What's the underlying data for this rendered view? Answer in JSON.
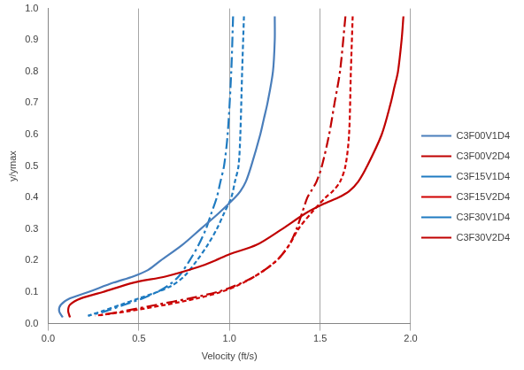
{
  "chart_data": {
    "type": "line",
    "x_label": "Velocity (ft/s)",
    "y_label": "y/ymax",
    "xlim": [
      0,
      2.0
    ],
    "xticks": [
      {
        "value": 0,
        "label": "0.0"
      },
      0.5,
      {
        "value": 1,
        "label": "1.0"
      },
      1.5,
      {
        "value": 2,
        "label": "2.0"
      }
    ],
    "ylim": [
      0,
      1.0
    ],
    "yticks": [
      {
        "value": 0,
        "label": "0.0"
      },
      0.1,
      0.2,
      0.3,
      0.4,
      0.5,
      0.6,
      0.7,
      0.8,
      0.9,
      {
        "value": 1,
        "label": "1.0"
      }
    ],
    "grid": "x",
    "legend": "right",
    "series": [
      {
        "name": "C3F00V1D4",
        "color": "#4a7ebb",
        "line_style": "solid",
        "x": [
          1.25,
          1.25,
          1.24,
          1.21,
          1.19,
          1.17,
          1.12,
          1.09,
          1.06,
          1.03,
          0.94,
          0.84,
          0.74,
          0.62,
          0.55,
          0.47,
          0.36,
          0.22,
          0.12,
          0.07,
          0.06,
          0.08
        ],
        "values": [
          0.975,
          0.9,
          0.8,
          0.7,
          0.65,
          0.6,
          0.5,
          0.45,
          0.42,
          0.4,
          0.35,
          0.3,
          0.25,
          0.2,
          0.17,
          0.15,
          0.13,
          0.1,
          0.08,
          0.06,
          0.04,
          0.02
        ]
      },
      {
        "name": "C3F00V2D4",
        "color": "#c00000",
        "line_style": "solid",
        "x": [
          1.96,
          1.95,
          1.93,
          1.91,
          1.89,
          1.84,
          1.76,
          1.71,
          1.66,
          1.6,
          1.52,
          1.42,
          1.29,
          1.15,
          1.0,
          0.92,
          0.83,
          0.65,
          0.47,
          0.3,
          0.18,
          0.12,
          0.11,
          0.12
        ],
        "values": [
          0.975,
          0.9,
          0.8,
          0.75,
          0.7,
          0.6,
          0.5,
          0.45,
          0.42,
          0.4,
          0.38,
          0.35,
          0.3,
          0.25,
          0.22,
          0.2,
          0.18,
          0.15,
          0.13,
          0.1,
          0.08,
          0.06,
          0.04,
          0.02
        ]
      },
      {
        "name": "C3F15V1D4",
        "color": "#1f7bc1",
        "line_style": "dashed",
        "x": [
          1.08,
          1.07,
          1.06,
          1.05,
          1.03,
          1.01,
          0.97,
          0.93,
          0.88,
          0.82,
          0.75,
          0.68,
          0.6,
          0.5,
          0.4,
          0.3,
          0.22
        ],
        "values": [
          0.975,
          0.8,
          0.6,
          0.5,
          0.45,
          0.4,
          0.35,
          0.3,
          0.25,
          0.2,
          0.15,
          0.12,
          0.1,
          0.08,
          0.06,
          0.04,
          0.025
        ]
      },
      {
        "name": "C3F15V2D4",
        "color": "#d00000",
        "line_style": "dashed",
        "x": [
          1.68,
          1.67,
          1.66,
          1.64,
          1.61,
          1.57,
          1.53,
          1.45,
          1.38,
          1.33,
          1.26,
          1.14,
          1.04,
          0.95,
          0.82,
          0.65,
          0.45,
          0.26
        ],
        "values": [
          0.975,
          0.8,
          0.6,
          0.5,
          0.45,
          0.42,
          0.4,
          0.35,
          0.3,
          0.25,
          0.2,
          0.15,
          0.12,
          0.1,
          0.08,
          0.06,
          0.04,
          0.025
        ]
      },
      {
        "name": "C3F30V1D4",
        "color": "#1f7bc1",
        "line_style": "dashdot",
        "x": [
          1.02,
          1.01,
          0.99,
          0.97,
          0.95,
          0.93,
          0.9,
          0.87,
          0.83,
          0.78,
          0.72,
          0.66,
          0.6,
          0.52,
          0.42,
          0.32,
          0.22
        ],
        "values": [
          0.975,
          0.8,
          0.6,
          0.5,
          0.45,
          0.4,
          0.35,
          0.3,
          0.25,
          0.2,
          0.15,
          0.12,
          0.1,
          0.08,
          0.06,
          0.04,
          0.025
        ]
      },
      {
        "name": "C3F30V2D4",
        "color": "#c00000",
        "line_style": "dashdot",
        "x": [
          1.64,
          1.61,
          1.58,
          1.55,
          1.51,
          1.48,
          1.45,
          1.43,
          1.4,
          1.37,
          1.33,
          1.26,
          1.14,
          1.03,
          0.93,
          0.78,
          0.6,
          0.42,
          0.27
        ],
        "values": [
          0.975,
          0.8,
          0.7,
          0.6,
          0.5,
          0.45,
          0.42,
          0.4,
          0.35,
          0.3,
          0.25,
          0.2,
          0.15,
          0.12,
          0.1,
          0.08,
          0.06,
          0.04,
          0.025
        ]
      }
    ]
  }
}
